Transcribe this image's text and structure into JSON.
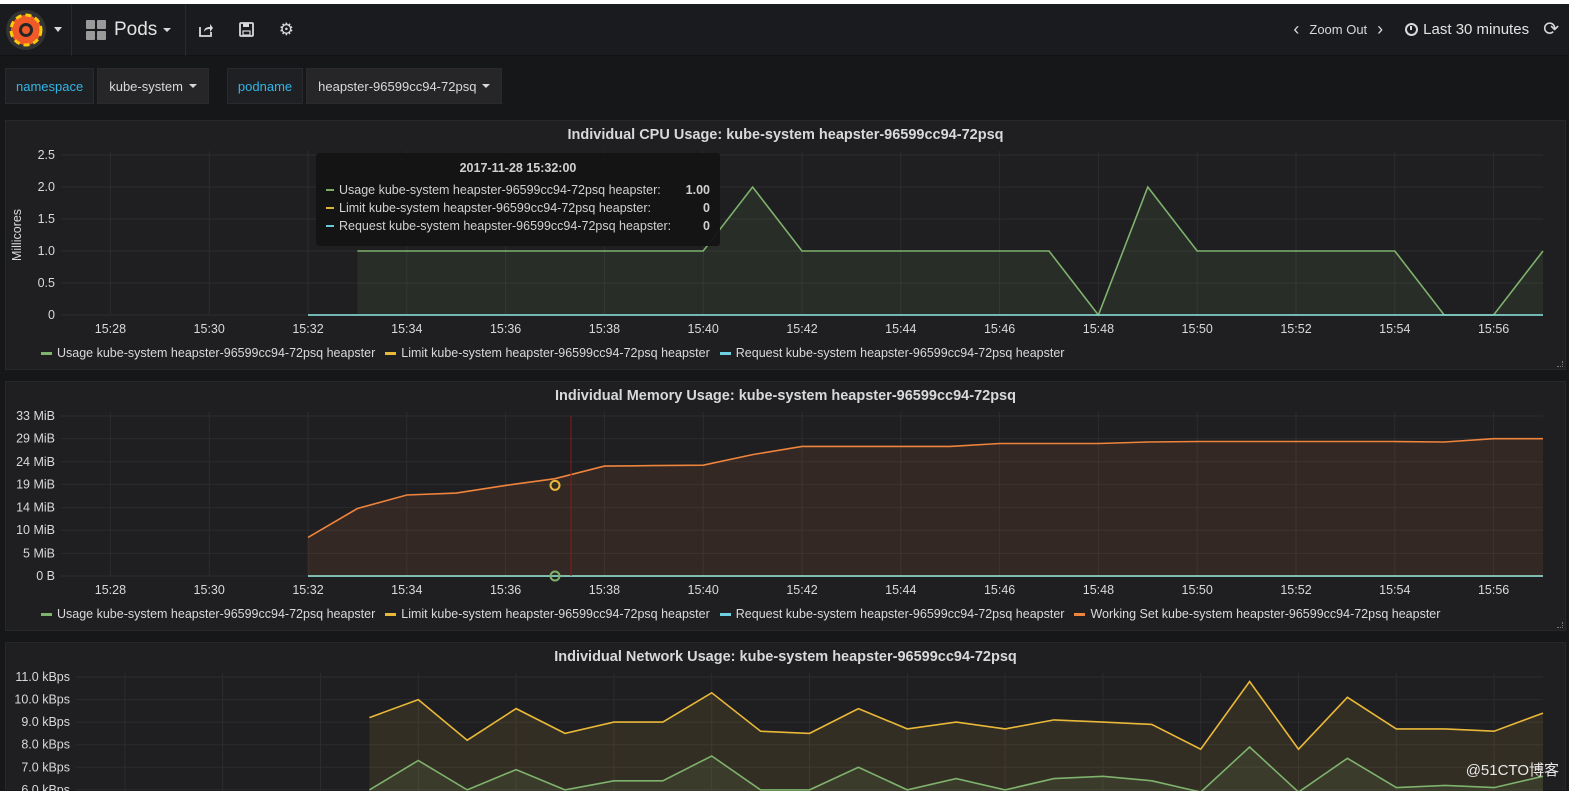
{
  "navbar": {
    "dashboard_title": "Pods",
    "zoom_label": "Zoom Out",
    "time_range": "Last 30 minutes"
  },
  "variables": [
    {
      "label": "namespace",
      "value": "kube-system"
    },
    {
      "label": "podname",
      "value": "heapster-96599cc94-72psq"
    }
  ],
  "cpu_panel": {
    "title": "Individual CPU Usage: kube-system heapster-96599cc94-72psq",
    "legend": [
      {
        "name": "Usage kube-system heapster-96599cc94-72psq heapster",
        "color": "#7eb26d"
      },
      {
        "name": "Limit kube-system heapster-96599cc94-72psq heapster",
        "color": "#eab839"
      },
      {
        "name": "Request kube-system heapster-96599cc94-72psq heapster",
        "color": "#6ed0e0"
      }
    ],
    "tooltip": {
      "time": "2017-11-28 15:32:00",
      "rows": [
        {
          "name": "Usage kube-system heapster-96599cc94-72psq heapster:",
          "value": "1.00",
          "color": "#7eb26d"
        },
        {
          "name": "Limit kube-system heapster-96599cc94-72psq heapster:",
          "value": "0",
          "color": "#eab839"
        },
        {
          "name": "Request kube-system heapster-96599cc94-72psq heapster:",
          "value": "0",
          "color": "#6ed0e0"
        }
      ]
    }
  },
  "memory_panel": {
    "title": "Individual Memory Usage: kube-system heapster-96599cc94-72psq",
    "legend": [
      {
        "name": "Usage kube-system heapster-96599cc94-72psq heapster",
        "color": "#7eb26d"
      },
      {
        "name": "Limit kube-system heapster-96599cc94-72psq heapster",
        "color": "#eab839"
      },
      {
        "name": "Request kube-system heapster-96599cc94-72psq heapster",
        "color": "#6ed0e0"
      },
      {
        "name": "Working Set kube-system heapster-96599cc94-72psq heapster",
        "color": "#ef843c"
      }
    ]
  },
  "network_panel": {
    "title": "Individual Network Usage: kube-system heapster-96599cc94-72psq"
  },
  "watermark": "@51CTO博客",
  "chart_data": [
    {
      "type": "line",
      "title": "Individual CPU Usage: kube-system heapster-96599cc94-72psq",
      "ylabel": "Millicores",
      "ylim": [
        0,
        2.5
      ],
      "yticks": [
        "0",
        "0.5",
        "1.0",
        "1.5",
        "2.0",
        "2.5"
      ],
      "xticks": [
        "15:28",
        "15:30",
        "15:32",
        "15:34",
        "15:36",
        "15:38",
        "15:40",
        "15:42",
        "15:44",
        "15:46",
        "15:48",
        "15:50",
        "15:52",
        "15:54",
        "15:56"
      ],
      "xlim": [
        "15:27",
        "15:57"
      ],
      "series": [
        {
          "name": "Usage kube-system heapster-96599cc94-72psq heapster",
          "color": "#7eb26d",
          "x": [
            "15:33",
            "15:34",
            "15:35",
            "15:36",
            "15:37",
            "15:38",
            "15:39",
            "15:40",
            "15:41",
            "15:42",
            "15:43",
            "15:44",
            "15:45",
            "15:46",
            "15:47",
            "15:48",
            "15:49",
            "15:50",
            "15:51",
            "15:52",
            "15:53",
            "15:54",
            "15:55",
            "15:56",
            "15:57"
          ],
          "values": [
            1,
            1,
            1,
            1,
            1,
            1,
            1,
            1,
            2,
            1,
            1,
            1,
            1,
            1,
            1,
            0,
            2,
            1,
            1,
            1,
            1,
            1,
            0,
            0,
            1
          ]
        },
        {
          "name": "Limit kube-system heapster-96599cc94-72psq heapster",
          "color": "#eab839",
          "x": [
            "15:32",
            "15:57"
          ],
          "values": [
            0,
            0
          ]
        },
        {
          "name": "Request kube-system heapster-96599cc94-72psq heapster",
          "color": "#6ed0e0",
          "x": [
            "15:32",
            "15:57"
          ],
          "values": [
            0,
            0
          ]
        }
      ],
      "legend": "bottom"
    },
    {
      "type": "line",
      "title": "Individual Memory Usage: kube-system heapster-96599cc94-72psq",
      "ylim": [
        0,
        33
      ],
      "yticks": [
        "0 B",
        "5 MiB",
        "10 MiB",
        "14 MiB",
        "19 MiB",
        "24 MiB",
        "29 MiB",
        "33 MiB"
      ],
      "ytick_values": [
        0,
        4.7,
        9.5,
        14.2,
        19.0,
        23.7,
        28.5,
        33.2
      ],
      "xticks": [
        "15:28",
        "15:30",
        "15:32",
        "15:34",
        "15:36",
        "15:38",
        "15:40",
        "15:42",
        "15:44",
        "15:46",
        "15:48",
        "15:50",
        "15:52",
        "15:54",
        "15:56"
      ],
      "xlim": [
        "15:27",
        "15:57"
      ],
      "series": [
        {
          "name": "Usage kube-system heapster-96599cc94-72psq heapster",
          "color": "#7eb26d",
          "x": [
            "15:32",
            "15:57"
          ],
          "values": [
            0,
            0
          ]
        },
        {
          "name": "Limit kube-system heapster-96599cc94-72psq heapster",
          "color": "#eab839",
          "x": [
            "15:32",
            "15:57"
          ],
          "values": [
            0,
            0
          ]
        },
        {
          "name": "Request kube-system heapster-96599cc94-72psq heapster",
          "color": "#6ed0e0",
          "x": [
            "15:32",
            "15:57"
          ],
          "values": [
            0,
            0
          ]
        },
        {
          "name": "Working Set kube-system heapster-96599cc94-72psq heapster",
          "color": "#ef843c",
          "x": [
            "15:32",
            "15:33",
            "15:34",
            "15:35",
            "15:36",
            "15:37",
            "15:38",
            "15:39",
            "15:40",
            "15:41",
            "15:42",
            "15:43",
            "15:44",
            "15:45",
            "15:46",
            "15:47",
            "15:48",
            "15:49",
            "15:50",
            "15:51",
            "15:52",
            "15:53",
            "15:54",
            "15:55",
            "15:56",
            "15:57"
          ],
          "values": [
            8.0,
            14.0,
            16.8,
            17.2,
            18.8,
            20.2,
            22.8,
            22.9,
            23.0,
            25.2,
            26.9,
            26.9,
            26.9,
            26.9,
            27.5,
            27.5,
            27.5,
            27.8,
            27.9,
            27.9,
            27.9,
            27.9,
            27.9,
            27.8,
            28.5,
            28.5
          ]
        }
      ],
      "legend": "bottom"
    },
    {
      "type": "line",
      "title": "Individual Network Usage: kube-system heapster-96599cc94-72psq",
      "yticks": [
        "6.0 kBps",
        "7.0 kBps",
        "8.0 kBps",
        "9.0 kBps",
        "10.0 kBps",
        "11.0 kBps"
      ],
      "ytick_values": [
        6,
        7,
        8,
        9,
        10,
        11
      ],
      "xlim": [
        "15:27",
        "15:57"
      ],
      "series": [
        {
          "name": "",
          "color": "#eab839",
          "x": [
            "15:33",
            "15:34",
            "15:35",
            "15:36",
            "15:37",
            "15:38",
            "15:39",
            "15:40",
            "15:41",
            "15:42",
            "15:43",
            "15:44",
            "15:45",
            "15:46",
            "15:47",
            "15:48",
            "15:49",
            "15:50",
            "15:51",
            "15:52",
            "15:53",
            "15:54",
            "15:55",
            "15:56",
            "15:57"
          ],
          "values": [
            9.2,
            10.0,
            8.2,
            9.6,
            8.5,
            9.0,
            9.0,
            10.3,
            8.6,
            8.5,
            9.6,
            8.7,
            9.0,
            8.7,
            9.1,
            9.0,
            8.9,
            7.8,
            10.8,
            7.8,
            10.1,
            8.7,
            8.7,
            8.6,
            9.4
          ]
        },
        {
          "name": "",
          "color": "#7eb26d",
          "x": [
            "15:33",
            "15:34",
            "15:35",
            "15:36",
            "15:37",
            "15:38",
            "15:39",
            "15:40",
            "15:41",
            "15:42",
            "15:43",
            "15:44",
            "15:45",
            "15:46",
            "15:47",
            "15:48",
            "15:49",
            "15:50",
            "15:51",
            "15:52",
            "15:53",
            "15:54",
            "15:55",
            "15:56",
            "15:57"
          ],
          "values": [
            6.0,
            7.3,
            6.0,
            6.9,
            6.0,
            6.4,
            6.4,
            7.5,
            6.0,
            6.0,
            7.0,
            6.0,
            6.5,
            6.0,
            6.5,
            6.6,
            6.4,
            5.9,
            7.9,
            5.9,
            7.4,
            6.1,
            6.2,
            6.1,
            6.6
          ]
        }
      ]
    }
  ]
}
